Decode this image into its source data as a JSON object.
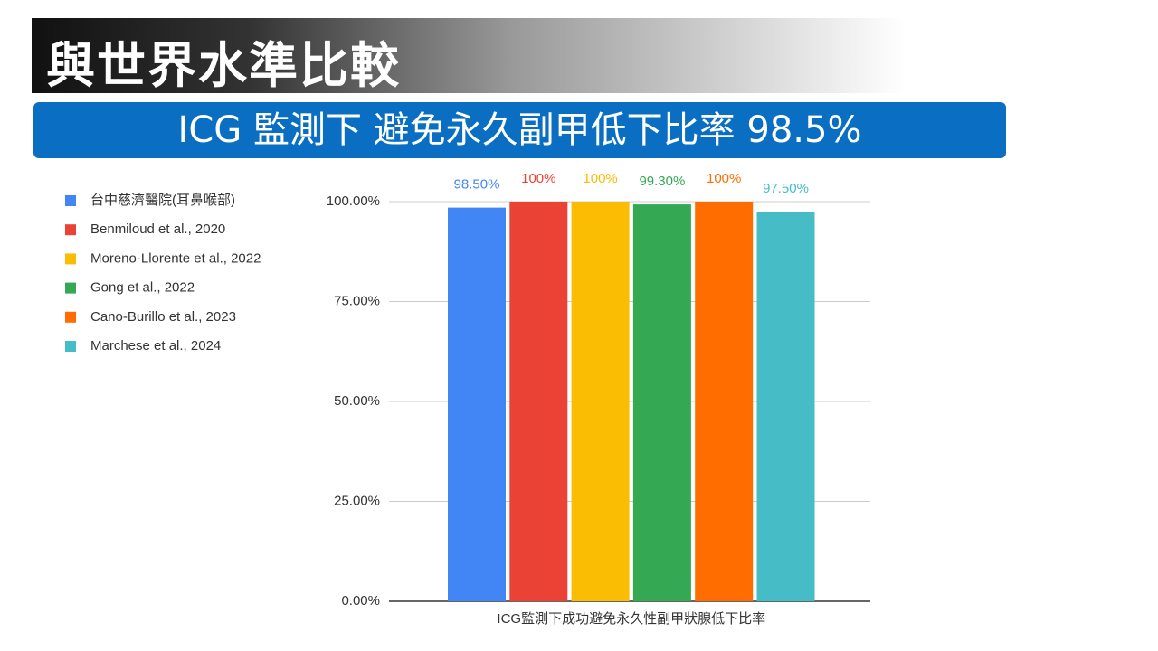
{
  "header": {
    "title": "與世界水準比較",
    "subtitle": "ICG 監測下 避免永久副甲低下比率 98.5%"
  },
  "chart_data": {
    "type": "bar",
    "categories": [
      "ICG監測下成功避免永久性副甲狀腺低下比率"
    ],
    "series": [
      {
        "name": "台中慈濟醫院(耳鼻喉部)",
        "color": "#4285f4",
        "values": [
          98.5
        ],
        "value_labels": [
          "98.50%"
        ]
      },
      {
        "name": "Benmiloud et al., 2020",
        "color": "#ea4335",
        "values": [
          100
        ],
        "value_labels": [
          "100%"
        ]
      },
      {
        "name": "Moreno-Llorente et al., 2022",
        "color": "#fbbc04",
        "values": [
          100
        ],
        "value_labels": [
          "100%"
        ]
      },
      {
        "name": "Gong et al., 2022",
        "color": "#34a853",
        "values": [
          99.3
        ],
        "value_labels": [
          "99.30%"
        ]
      },
      {
        "name": "Cano-Burillo et al., 2023",
        "color": "#ff6d01",
        "values": [
          100
        ],
        "value_labels": [
          "100%"
        ]
      },
      {
        "name": "Marchese et al., 2024",
        "color": "#46bdc6",
        "values": [
          97.5
        ],
        "value_labels": [
          "97.50%"
        ]
      }
    ],
    "ylim": [
      0,
      100
    ],
    "yticks": [
      {
        "value": 0,
        "label": "0.00%"
      },
      {
        "value": 25,
        "label": "25.00%"
      },
      {
        "value": 50,
        "label": "50.00%"
      },
      {
        "value": 75,
        "label": "75.00%"
      },
      {
        "value": 100,
        "label": "100.00%"
      }
    ],
    "grid": true
  }
}
